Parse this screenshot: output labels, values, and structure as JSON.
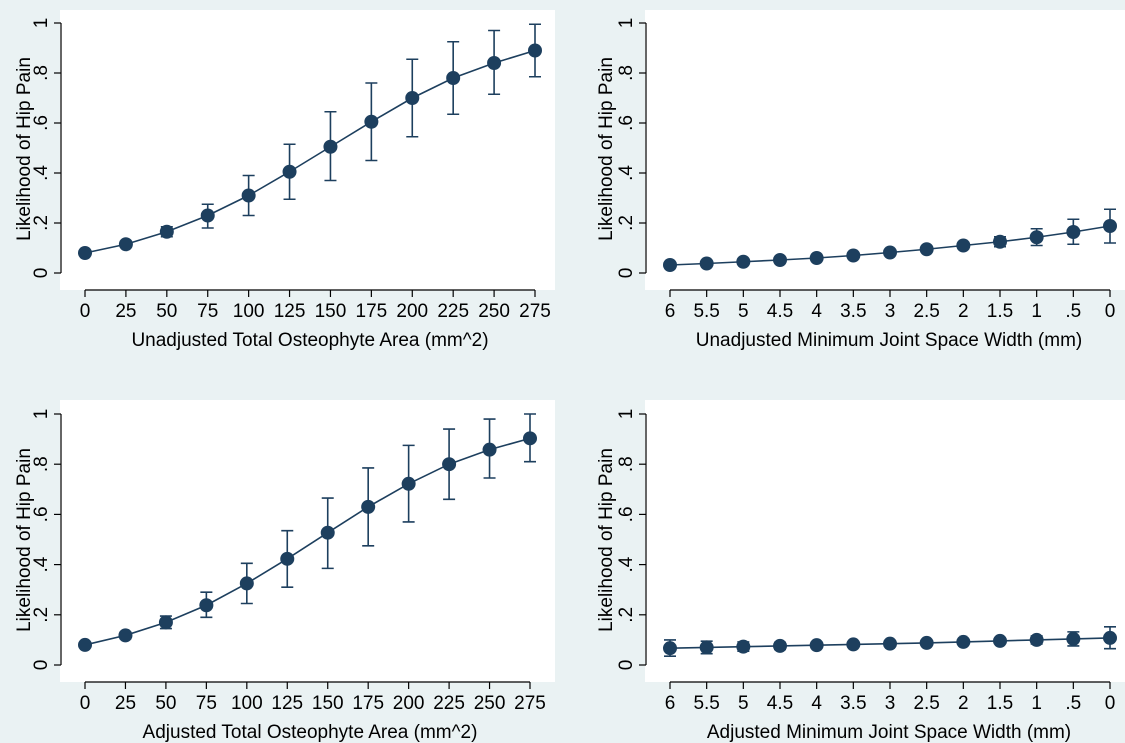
{
  "colors": {
    "background": "#eaf2f3",
    "plot": "#ffffff",
    "series": "#1d3f5e"
  },
  "chart_data": [
    {
      "type": "line",
      "xlabel": "Unadjusted Total Osteophyte Area (mm^2)",
      "ylabel": "Likelihood of Hip Pain",
      "xticks": [
        "0",
        "25",
        "50",
        "75",
        "100",
        "125",
        "150",
        "175",
        "200",
        "225",
        "250",
        "275"
      ],
      "yticks": [
        "0",
        ".2",
        ".4",
        ".6",
        ".8",
        "1"
      ],
      "ylim": [
        0,
        1
      ],
      "grid": false,
      "x": [
        0,
        25,
        50,
        75,
        100,
        125,
        150,
        175,
        200,
        225,
        250,
        275
      ],
      "y": [
        0.08,
        0.115,
        0.165,
        0.23,
        0.31,
        0.405,
        0.505,
        0.605,
        0.7,
        0.78,
        0.84,
        0.89
      ],
      "lower": [
        0.07,
        0.105,
        0.145,
        0.18,
        0.23,
        0.295,
        0.37,
        0.45,
        0.545,
        0.635,
        0.715,
        0.785
      ],
      "upper": [
        0.09,
        0.125,
        0.185,
        0.275,
        0.39,
        0.515,
        0.645,
        0.76,
        0.855,
        0.925,
        0.97,
        0.995
      ]
    },
    {
      "type": "line",
      "xlabel": "Unadjusted Minimum Joint Space Width (mm)",
      "ylabel": "Likelihood of Hip Pain",
      "xticks": [
        "6",
        "5.5",
        "5",
        "4.5",
        "4",
        "3.5",
        "3",
        "2.5",
        "2",
        "1.5",
        "1",
        ".5",
        "0"
      ],
      "yticks": [
        "0",
        ".2",
        ".4",
        ".6",
        ".8",
        "1"
      ],
      "ylim": [
        0,
        1
      ],
      "grid": false,
      "x": [
        6,
        5.5,
        5,
        4.5,
        4,
        3.5,
        3,
        2.5,
        2,
        1.5,
        1,
        0.5,
        0
      ],
      "y": [
        0.032,
        0.038,
        0.045,
        0.052,
        0.06,
        0.07,
        0.082,
        0.095,
        0.11,
        0.125,
        0.143,
        0.164,
        0.188
      ],
      "lower": [
        0.025,
        0.031,
        0.038,
        0.046,
        0.054,
        0.064,
        0.076,
        0.087,
        0.098,
        0.105,
        0.11,
        0.115,
        0.12
      ],
      "upper": [
        0.04,
        0.046,
        0.053,
        0.059,
        0.066,
        0.076,
        0.088,
        0.103,
        0.122,
        0.145,
        0.177,
        0.215,
        0.255
      ]
    },
    {
      "type": "line",
      "xlabel": "Adjusted Total Osteophyte Area (mm^2)",
      "ylabel": "Likelihood of Hip Pain",
      "xticks": [
        "0",
        "25",
        "50",
        "75",
        "100",
        "125",
        "150",
        "175",
        "200",
        "225",
        "250",
        "275"
      ],
      "yticks": [
        "0",
        ".2",
        ".4",
        ".6",
        ".8",
        "1"
      ],
      "ylim": [
        0,
        1
      ],
      "grid": false,
      "x": [
        0,
        25,
        50,
        75,
        100,
        125,
        150,
        175,
        200,
        225,
        250,
        275
      ],
      "y": [
        0.08,
        0.118,
        0.17,
        0.238,
        0.325,
        0.423,
        0.527,
        0.63,
        0.722,
        0.8,
        0.858,
        0.903
      ],
      "lower": [
        0.07,
        0.105,
        0.145,
        0.19,
        0.245,
        0.31,
        0.385,
        0.475,
        0.57,
        0.66,
        0.745,
        0.81
      ],
      "upper": [
        0.09,
        0.13,
        0.195,
        0.29,
        0.405,
        0.535,
        0.665,
        0.785,
        0.875,
        0.94,
        0.98,
        1.0
      ]
    },
    {
      "type": "line",
      "xlabel": "Adjusted Minimum Joint Space Width (mm)",
      "ylabel": "Likelihood of Hip Pain",
      "xticks": [
        "6",
        "5.5",
        "5",
        "4.5",
        "4",
        "3.5",
        "3",
        "2.5",
        "2",
        "1.5",
        "1",
        ".5",
        "0"
      ],
      "yticks": [
        "0",
        ".2",
        ".4",
        ".6",
        ".8",
        "1"
      ],
      "ylim": [
        0,
        1
      ],
      "grid": false,
      "x": [
        6,
        5.5,
        5,
        4.5,
        4,
        3.5,
        3,
        2.5,
        2,
        1.5,
        1,
        0.5,
        0
      ],
      "y": [
        0.067,
        0.07,
        0.073,
        0.076,
        0.079,
        0.082,
        0.085,
        0.088,
        0.092,
        0.096,
        0.1,
        0.104,
        0.108
      ],
      "lower": [
        0.035,
        0.045,
        0.055,
        0.062,
        0.069,
        0.074,
        0.078,
        0.081,
        0.084,
        0.085,
        0.084,
        0.076,
        0.065
      ],
      "upper": [
        0.1,
        0.095,
        0.092,
        0.09,
        0.089,
        0.09,
        0.092,
        0.096,
        0.1,
        0.107,
        0.116,
        0.132,
        0.152
      ]
    }
  ]
}
